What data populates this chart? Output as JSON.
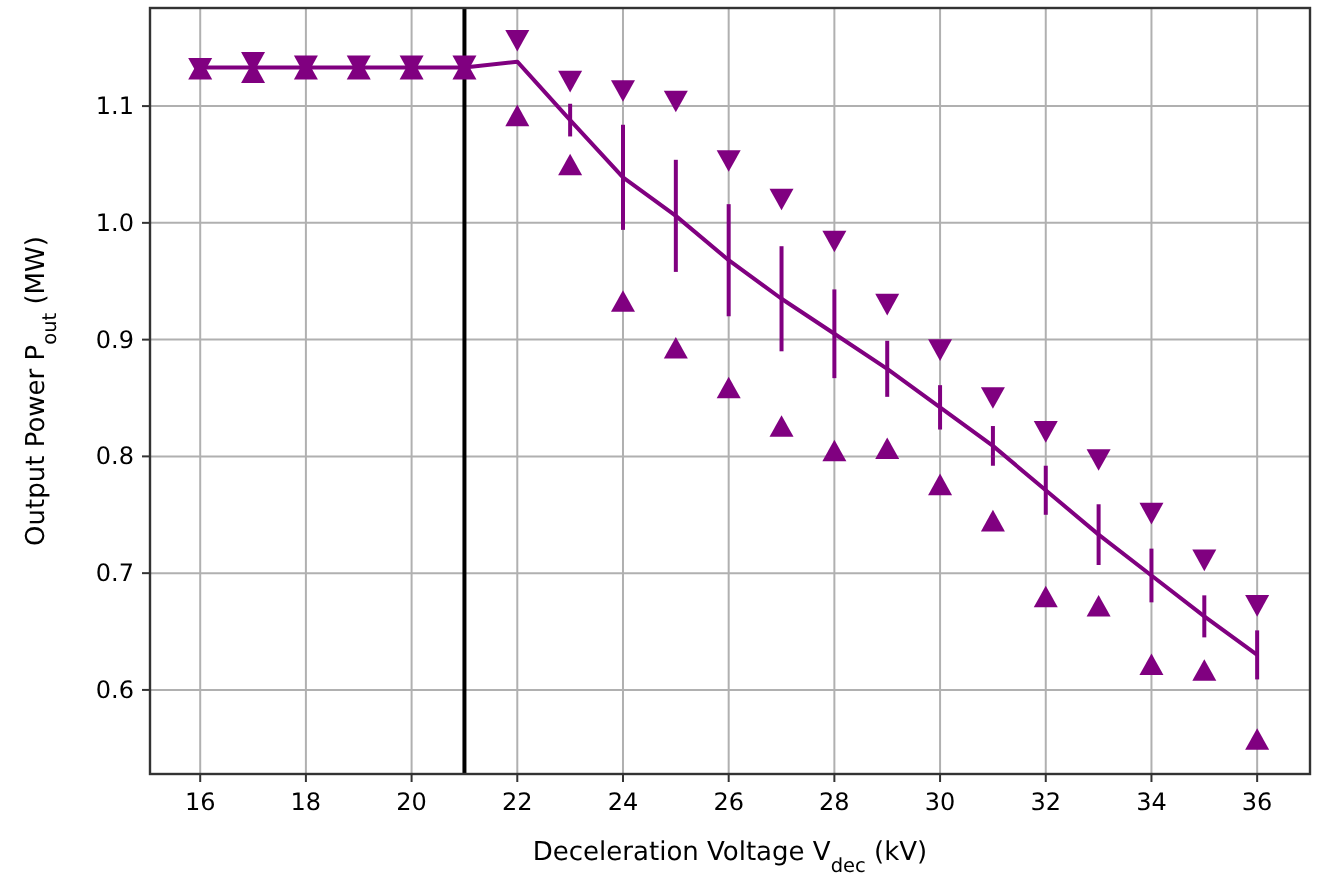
{
  "chart_data": {
    "type": "line",
    "xlabel": "Deceleration Voltage V$_{dec}$ (kV)",
    "ylabel": "Output Power P$_{out}$ (MW)",
    "x": [
      16,
      17,
      18,
      19,
      20,
      21,
      22,
      23,
      24,
      25,
      26,
      27,
      28,
      29,
      30,
      31,
      32,
      33,
      34,
      35,
      36
    ],
    "series": [
      {
        "color": "#800080",
        "marker": "none",
        "values": [
          1.133,
          1.133,
          1.133,
          1.133,
          1.133,
          1.133,
          1.138,
          1.088,
          1.039,
          1.006,
          0.968,
          0.935,
          0.905,
          0.875,
          0.842,
          0.809,
          0.771,
          0.733,
          0.698,
          0.663,
          0.63
        ],
        "errors": [
          null,
          null,
          null,
          null,
          null,
          null,
          null,
          0.014,
          0.045,
          0.048,
          0.048,
          0.045,
          0.038,
          0.024,
          0.019,
          0.017,
          0.021,
          0.026,
          0.023,
          0.018,
          0.021
        ]
      },
      {
        "type": "scatter",
        "color": "#800080",
        "marker": "triangle-down",
        "values": [
          1.133,
          1.138,
          1.135,
          1.135,
          1.135,
          1.135,
          1.157,
          1.122,
          1.114,
          1.105,
          1.054,
          1.021,
          0.985,
          0.931,
          0.892,
          0.851,
          0.822,
          0.798,
          0.752,
          0.712,
          0.673
        ]
      },
      {
        "type": "scatter",
        "color": "#800080",
        "marker": "triangle",
        "values": [
          1.131,
          1.128,
          1.131,
          1.131,
          1.131,
          1.131,
          1.091,
          1.049,
          0.932,
          0.892,
          0.858,
          0.825,
          0.804,
          0.806,
          0.775,
          0.744,
          0.679,
          0.671,
          0.621,
          0.616,
          0.557
        ]
      }
    ],
    "ref_lines": [
      {
        "axis": "x",
        "value": 21,
        "color": "#000000"
      }
    ],
    "xlim": [
      15.05,
      37
    ],
    "xticks": [
      16,
      18,
      20,
      22,
      24,
      26,
      28,
      30,
      32,
      34,
      36
    ],
    "ylim": [
      0.528,
      1.184
    ],
    "yticks": [
      {
        "value": 0.6,
        "label": "0.6"
      },
      {
        "value": 0.7,
        "label": "0.7"
      },
      {
        "value": 0.8,
        "label": "0.8"
      },
      {
        "value": 0.9,
        "label": "0.9"
      },
      {
        "value": 1.0,
        "label": "1.0"
      },
      {
        "value": 1.1,
        "label": "1.1"
      }
    ],
    "grid": true
  }
}
